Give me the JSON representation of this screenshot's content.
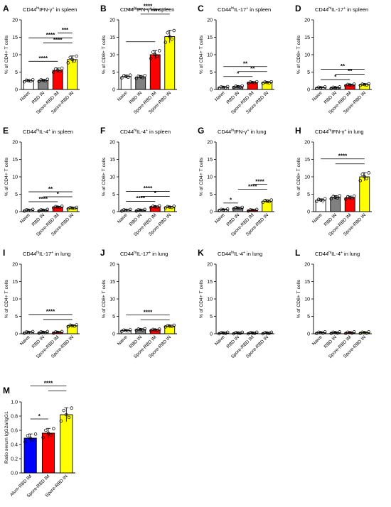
{
  "chart_data": [
    {
      "id": "A",
      "type": "bar",
      "title_pre": "CD44",
      "title_sup1": "hi",
      "title_mid": "IFN-γ",
      "title_sup2": "+",
      "title_post": " in spleen",
      "ylabel_pre": "% of CD",
      "ylabel_sup": "4",
      "ylabel_post": "+ T cells",
      "ylim": [
        0,
        20
      ],
      "yticks": [
        "0",
        "5",
        "10",
        "15",
        "20"
      ],
      "categories": [
        "Naive",
        "RBD IN",
        "Spore-RBD IM",
        "Spore-RBD IN"
      ],
      "values": [
        2.5,
        2.6,
        5.5,
        8.6
      ],
      "colors": [
        "#ffffff",
        "#808080",
        "#ff0000",
        "#ffff00"
      ],
      "comparisons": [
        {
          "from": 0,
          "to": 2,
          "label": "****"
        },
        {
          "from": 1,
          "to": 3,
          "label": "****"
        },
        {
          "from": 0,
          "to": 3,
          "label": "****"
        },
        {
          "from": 2,
          "to": 3,
          "label": "***"
        }
      ]
    },
    {
      "id": "B",
      "type": "bar",
      "title_pre": "CD44",
      "title_sup1": "hi",
      "title_mid": "IFN-γ",
      "title_sup2": "+",
      "title_post": " in spleen",
      "ylabel_pre": "% of CD",
      "ylabel_sup": "8",
      "ylabel_post": "+ T cells",
      "ylim": [
        0,
        20
      ],
      "yticks": [
        "0",
        "5",
        "10",
        "15",
        "20"
      ],
      "categories": [
        "Naive",
        "RBD IN",
        "Spore-RBD IM",
        "Spore-RBD IN"
      ],
      "values": [
        3.7,
        3.6,
        10,
        15.2
      ],
      "colors": [
        "#ffffff",
        "#808080",
        "#ff0000",
        "#ffff00"
      ],
      "comparisons": [
        {
          "from": 0,
          "to": 2,
          "label": ""
        },
        {
          "from": 1,
          "to": 3,
          "label": "****"
        },
        {
          "from": 0,
          "to": 3,
          "label": "****"
        }
      ]
    },
    {
      "id": "C",
      "type": "bar",
      "title_pre": "CD44",
      "title_sup1": "hi",
      "title_mid": "IL-17",
      "title_sup2": "+",
      "title_post": " in spleen",
      "ylabel_pre": "% of CD",
      "ylabel_sup": "4",
      "ylabel_post": "+ T cells",
      "ylim": [
        0,
        20
      ],
      "yticks": [
        "0",
        "5",
        "10",
        "15",
        "20"
      ],
      "categories": [
        "Naive",
        "RBD IN",
        "Spore-RBD IM",
        "Spore-RBD IN"
      ],
      "values": [
        0.6,
        0.8,
        2.0,
        2.0
      ],
      "colors": [
        "#ffffff",
        "#808080",
        "#ff0000",
        "#ffff00"
      ],
      "comparisons": [
        {
          "from": 0,
          "to": 2,
          "label": "*"
        },
        {
          "from": 1,
          "to": 3,
          "label": "**"
        },
        {
          "from": 0,
          "to": 3,
          "label": "**"
        }
      ]
    },
    {
      "id": "D",
      "type": "bar",
      "title_pre": "CD44",
      "title_sup1": "hi",
      "title_mid": "IL-17",
      "title_sup2": "+",
      "title_post": " in spleen",
      "ylabel_pre": "% of CD",
      "ylabel_sup": "8",
      "ylabel_post": "+ T cells",
      "ylim": [
        0,
        20
      ],
      "yticks": [
        "0",
        "5",
        "10",
        "15",
        "20"
      ],
      "categories": [
        "Naive",
        "RBD IN",
        "Spore-RBD IM",
        "Spore-RBD IN"
      ],
      "values": [
        0.5,
        0.5,
        1.3,
        1.4
      ],
      "colors": [
        "#ffffff",
        "#808080",
        "#ff0000",
        "#ffff00"
      ],
      "comparisons": [
        {
          "from": 0,
          "to": 2,
          "label": "*"
        },
        {
          "from": 1,
          "to": 3,
          "label": "**"
        },
        {
          "from": 0,
          "to": 3,
          "label": "**"
        }
      ]
    },
    {
      "id": "E",
      "type": "bar",
      "title_pre": "CD44",
      "title_sup1": "hi",
      "title_mid": "IL-4",
      "title_sup2": "+",
      "title_post": " in spleen",
      "ylabel_pre": "% of CD",
      "ylabel_sup": "4",
      "ylabel_post": "+ T cells",
      "ylim": [
        0,
        20
      ],
      "yticks": [
        "0",
        "5",
        "10",
        "15",
        "20"
      ],
      "categories": [
        "Naive",
        "RBD IN",
        "Spore-RBD IM",
        "Spore-RBD IN"
      ],
      "values": [
        0.4,
        0.4,
        1.3,
        1.0
      ],
      "colors": [
        "#ffffff",
        "#808080",
        "#ff0000",
        "#ffff00"
      ],
      "comparisons": [
        {
          "from": 0,
          "to": 2,
          "label": "****"
        },
        {
          "from": 1,
          "to": 3,
          "label": "*"
        },
        {
          "from": 0,
          "to": 3,
          "label": "**"
        }
      ]
    },
    {
      "id": "F",
      "type": "bar",
      "title_pre": "CD44",
      "title_sup1": "hi",
      "title_mid": "IL-4",
      "title_sup2": "+",
      "title_post": " in spleen",
      "ylabel_pre": "% of CD",
      "ylabel_sup": "8",
      "ylabel_post": "+ T cells",
      "ylim": [
        0,
        20
      ],
      "yticks": [
        "0",
        "5",
        "10",
        "15",
        "20"
      ],
      "categories": [
        "Naive",
        "RBD IN",
        "Spore-RBD IM",
        "Spore-RBD IN"
      ],
      "values": [
        0.4,
        0.4,
        1.4,
        1.3
      ],
      "colors": [
        "#ffffff",
        "#808080",
        "#ff0000",
        "#ffff00"
      ],
      "comparisons": [
        {
          "from": 0,
          "to": 2,
          "label": "****"
        },
        {
          "from": 1,
          "to": 3,
          "label": "*"
        },
        {
          "from": 0,
          "to": 3,
          "label": "****"
        }
      ]
    },
    {
      "id": "G",
      "type": "bar",
      "title_pre": "CD44",
      "title_sup1": "hi",
      "title_mid": "IFN-γ",
      "title_sup2": "+",
      "title_post": " in lung",
      "ylabel_pre": "% of CD",
      "ylabel_sup": "4",
      "ylabel_post": "+ T cells",
      "ylim": [
        0,
        20
      ],
      "yticks": [
        "0",
        "5",
        "10",
        "15",
        "20"
      ],
      "categories": [
        "Naive",
        "RBD IN",
        "Spore-RBD IM",
        "Spore-RBD IN"
      ],
      "values": [
        0.5,
        1.0,
        0.4,
        3.0
      ],
      "colors": [
        "#ffffff",
        "#808080",
        "#ff0000",
        "#ffff00"
      ],
      "comparisons": [
        {
          "from": 0,
          "to": 1,
          "label": "*"
        },
        {
          "from": 1,
          "to": 3,
          "label": "****"
        },
        {
          "from": 2,
          "to": 3,
          "label": "****"
        }
      ]
    },
    {
      "id": "H",
      "type": "bar",
      "title_pre": "CD44",
      "title_sup1": "hi",
      "title_mid": "IFN-γ",
      "title_sup2": "+",
      "title_post": " in lung",
      "ylabel_pre": "% of CD",
      "ylabel_sup": "8",
      "ylabel_post": "+ T cells",
      "ylim": [
        0,
        20
      ],
      "yticks": [
        "0",
        "5",
        "10",
        "15",
        "20"
      ],
      "categories": [
        "Naive",
        "RBD IN",
        "Spore-RBD IM",
        "Spore-RBD IN"
      ],
      "values": [
        3.3,
        4.1,
        4.0,
        10.0
      ],
      "colors": [
        "#ffffff",
        "#808080",
        "#ff0000",
        "#ffff00"
      ],
      "comparisons": [
        {
          "from": 1,
          "to": 3,
          "label": ""
        },
        {
          "from": 0,
          "to": 3,
          "label": "****"
        }
      ]
    },
    {
      "id": "I",
      "type": "bar",
      "title_pre": "CD44",
      "title_sup1": "hi",
      "title_mid": "IL-17",
      "title_sup2": "+",
      "title_post": " in lung",
      "ylabel_pre": "% of CD",
      "ylabel_sup": "4",
      "ylabel_post": "+ T cells",
      "ylim": [
        0,
        20
      ],
      "yticks": [
        "0",
        "5",
        "10",
        "15",
        "20"
      ],
      "categories": [
        "Naive",
        "RBD IN",
        "Spore-RBD IM",
        "Spore-RBD IN"
      ],
      "values": [
        0.4,
        0.4,
        0.4,
        2.3
      ],
      "colors": [
        "#ffffff",
        "#808080",
        "#ff0000",
        "#ffff00"
      ],
      "comparisons": [
        {
          "from": 1,
          "to": 3,
          "label": ""
        },
        {
          "from": 0,
          "to": 3,
          "label": "****"
        }
      ]
    },
    {
      "id": "J",
      "type": "bar",
      "title_pre": "CD44",
      "title_sup1": "hi",
      "title_mid": "IL-17",
      "title_sup2": "+",
      "title_post": " in lung",
      "ylabel_pre": "% of CD",
      "ylabel_sup": "8",
      "ylabel_post": "+ T cells",
      "ylim": [
        0,
        20
      ],
      "yticks": [
        "0",
        "5",
        "10",
        "15",
        "20"
      ],
      "categories": [
        "Naive",
        "RBD IN",
        "Spore-RBD IM",
        "Spore-RBD IN"
      ],
      "values": [
        0.9,
        1.2,
        1.1,
        2.2
      ],
      "colors": [
        "#ffffff",
        "#808080",
        "#ff0000",
        "#ffff00"
      ],
      "comparisons": [
        {
          "from": 1,
          "to": 3,
          "label": ""
        },
        {
          "from": 0,
          "to": 3,
          "label": "****"
        }
      ]
    },
    {
      "id": "K",
      "type": "bar",
      "title_pre": "CD44",
      "title_sup1": "hi",
      "title_mid": "IL-4",
      "title_sup2": "+",
      "title_post": " in lung",
      "ylabel_pre": "% of CD",
      "ylabel_sup": "4",
      "ylabel_post": "+ T cells",
      "ylim": [
        0,
        20
      ],
      "yticks": [
        "0",
        "5",
        "10",
        "15",
        "20"
      ],
      "categories": [
        "Naive",
        "RBD IN",
        "Spore-RBD IM",
        "Spore-RBD IN"
      ],
      "values": [
        0.2,
        0.2,
        0.2,
        0.2
      ],
      "colors": [
        "#ffffff",
        "#808080",
        "#ff0000",
        "#ffff00"
      ],
      "comparisons": []
    },
    {
      "id": "L",
      "type": "bar",
      "title_pre": "CD44",
      "title_sup1": "hi",
      "title_mid": "IL-4",
      "title_sup2": "+",
      "title_post": " in lung",
      "ylabel_pre": "% of CD",
      "ylabel_sup": "8",
      "ylabel_post": "+ T cells",
      "ylim": [
        0,
        20
      ],
      "yticks": [
        "0",
        "5",
        "10",
        "15",
        "20"
      ],
      "categories": [
        "Naive",
        "RBD IN",
        "Spore-RBD IM",
        "Spore-RBD IN"
      ],
      "values": [
        0.3,
        0.3,
        0.3,
        0.3
      ],
      "colors": [
        "#ffffff",
        "#808080",
        "#ff0000",
        "#ffff00"
      ],
      "comparisons": []
    },
    {
      "id": "M",
      "type": "bar",
      "title_pre": "",
      "title_sup1": "",
      "title_mid": "",
      "title_sup2": "",
      "title_post": "",
      "ylabel_pre": "Ratio serum IgG2a/IgG1",
      "ylabel_sup": "",
      "ylabel_post": "",
      "ylim": [
        0,
        1
      ],
      "yticks": [
        "0.0",
        "0.2",
        "0.4",
        "0.6",
        "0.8",
        "1.0"
      ],
      "categories": [
        "Alum-RBD IM",
        "Spore-RBD IM",
        "Spore-RBD IN"
      ],
      "values": [
        0.49,
        0.56,
        0.82
      ],
      "colors": [
        "#0000ff",
        "#ff0000",
        "#ffff00"
      ],
      "comparisons": [
        {
          "from": 0,
          "to": 1,
          "label": "*"
        },
        {
          "from": 1,
          "to": 2,
          "label": ""
        },
        {
          "from": 0,
          "to": 2,
          "label": "****"
        }
      ]
    }
  ]
}
